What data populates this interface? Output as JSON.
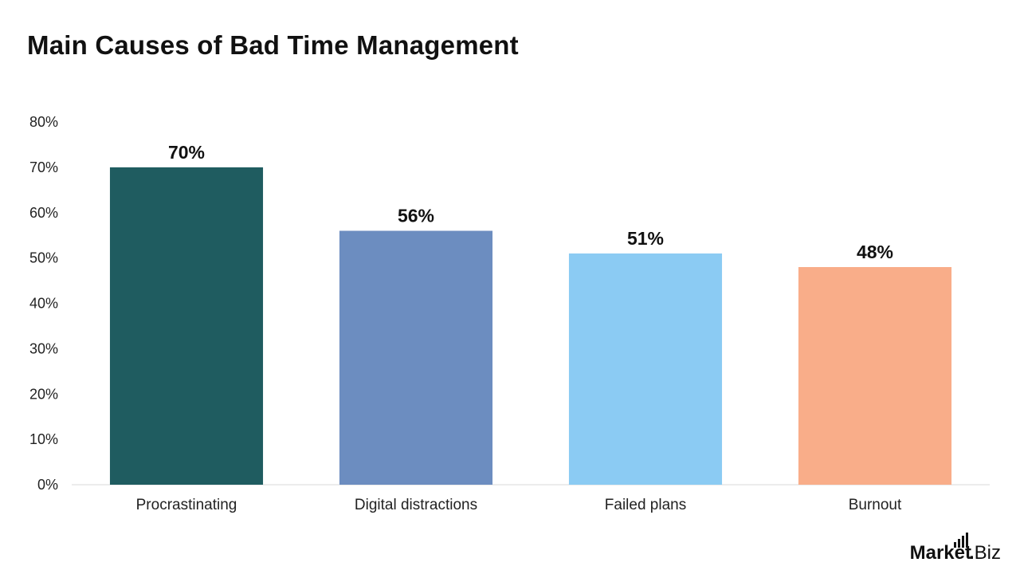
{
  "chart_data": {
    "type": "bar",
    "title": "Main Causes of Bad Time Management",
    "categories": [
      "Procrastinating",
      "Digital distractions",
      "Failed plans",
      "Burnout"
    ],
    "values": [
      70,
      56,
      51,
      48
    ],
    "value_labels": [
      "70%",
      "56%",
      "51%",
      "48%"
    ],
    "bar_colors": [
      "#1f5c60",
      "#6c8dc0",
      "#8bcbf3",
      "#f9ad89"
    ],
    "ylim": [
      0,
      80
    ],
    "yticks": [
      0,
      10,
      20,
      30,
      40,
      50,
      60,
      70,
      80
    ],
    "ytick_labels": [
      "0%",
      "10%",
      "20%",
      "30%",
      "40%",
      "50%",
      "60%",
      "70%",
      "80%"
    ],
    "xlabel": "",
    "ylabel": "",
    "grid": false,
    "legend": false
  },
  "brand": {
    "name_bold": "Market",
    "separator": ".",
    "name_light": "Biz"
  }
}
